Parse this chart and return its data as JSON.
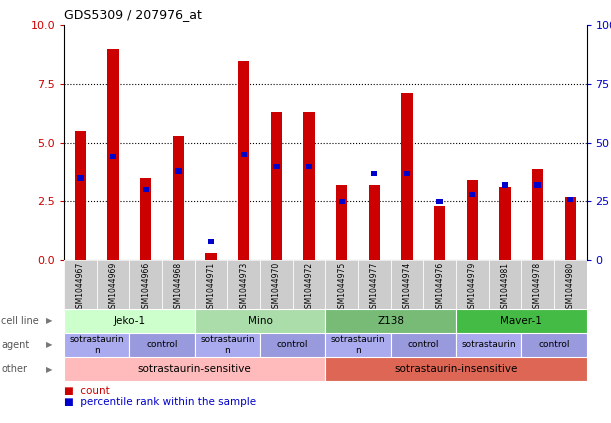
{
  "title": "GDS5309 / 207976_at",
  "samples": [
    "GSM1044967",
    "GSM1044969",
    "GSM1044966",
    "GSM1044968",
    "GSM1044971",
    "GSM1044973",
    "GSM1044970",
    "GSM1044972",
    "GSM1044975",
    "GSM1044977",
    "GSM1044974",
    "GSM1044976",
    "GSM1044979",
    "GSM1044981",
    "GSM1044978",
    "GSM1044980"
  ],
  "count_values": [
    5.5,
    9.0,
    3.5,
    5.3,
    0.3,
    8.5,
    6.3,
    6.3,
    3.2,
    3.2,
    7.1,
    2.3,
    3.4,
    3.1,
    3.9,
    2.7
  ],
  "percentile_values": [
    3.5,
    4.4,
    3.0,
    3.8,
    0.8,
    4.5,
    4.0,
    4.0,
    2.5,
    3.7,
    3.7,
    2.5,
    2.8,
    3.2,
    3.2,
    2.6
  ],
  "ylim_left": [
    0,
    10
  ],
  "ylim_right": [
    0,
    100
  ],
  "yticks_left": [
    0,
    2.5,
    5.0,
    7.5,
    10
  ],
  "yticks_right": [
    0,
    25,
    50,
    75,
    100
  ],
  "bar_color": "#cc0000",
  "percentile_color": "#0000cc",
  "cell_line_groups": [
    {
      "label": "Jeko-1",
      "start": 0,
      "end": 4,
      "color": "#ccffcc"
    },
    {
      "label": "Mino",
      "start": 4,
      "end": 8,
      "color": "#aaddaa"
    },
    {
      "label": "Z138",
      "start": 8,
      "end": 12,
      "color": "#77bb77"
    },
    {
      "label": "Maver-1",
      "start": 12,
      "end": 16,
      "color": "#44bb44"
    }
  ],
  "agent_groups": [
    {
      "label": "sotrastaurin\nn",
      "start": 0,
      "end": 2,
      "color": "#aaaaee"
    },
    {
      "label": "control",
      "start": 2,
      "end": 4,
      "color": "#9999dd"
    },
    {
      "label": "sotrastaurin\nn",
      "start": 4,
      "end": 6,
      "color": "#aaaaee"
    },
    {
      "label": "control",
      "start": 6,
      "end": 8,
      "color": "#9999dd"
    },
    {
      "label": "sotrastaurin\nn",
      "start": 8,
      "end": 10,
      "color": "#aaaaee"
    },
    {
      "label": "control",
      "start": 10,
      "end": 12,
      "color": "#9999dd"
    },
    {
      "label": "sotrastaurin",
      "start": 12,
      "end": 14,
      "color": "#aaaaee"
    },
    {
      "label": "control",
      "start": 14,
      "end": 16,
      "color": "#9999dd"
    }
  ],
  "other_groups": [
    {
      "label": "sotrastaurin-sensitive",
      "start": 0,
      "end": 8,
      "color": "#ffbbbb"
    },
    {
      "label": "sotrastaurin-insensitive",
      "start": 8,
      "end": 16,
      "color": "#dd6655"
    }
  ],
  "row_labels": [
    "cell line",
    "agent",
    "other"
  ],
  "legend_count_label": "count",
  "legend_pct_label": "percentile rank within the sample",
  "bg_color": "#ffffff",
  "tick_color_left": "#cc0000",
  "tick_color_right": "#0000cc",
  "xtick_bg": "#cccccc",
  "bar_width": 0.35
}
